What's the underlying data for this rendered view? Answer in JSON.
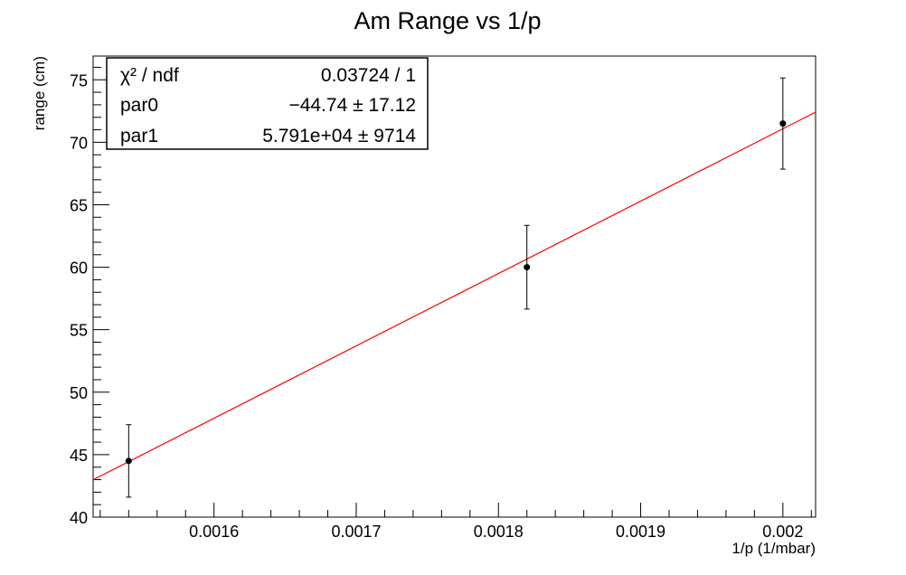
{
  "chart_data": {
    "type": "scatter",
    "title": "Am Range vs 1/p",
    "xlabel": "1/p (1/mbar)",
    "ylabel": "range (cm)",
    "xlim": [
      0.001515,
      0.002023
    ],
    "ylim": [
      40,
      76.9
    ],
    "grid": false,
    "x_ticks": [
      "0.0016",
      "0.0017",
      "0.0018",
      "0.0019",
      "0.002"
    ],
    "y_ticks": [
      "40",
      "45",
      "50",
      "55",
      "60",
      "65",
      "70",
      "75"
    ],
    "series": [
      {
        "type": "scatter",
        "x": [
          0.00154,
          0.00182,
          0.002
        ],
        "y": [
          44.5,
          60.0,
          71.5
        ],
        "yerr": [
          2.9,
          3.35,
          3.65
        ],
        "color": "#000000"
      },
      {
        "type": "line",
        "fit": "linear",
        "intercept": -44.74,
        "slope": 57910,
        "color": "#ff0000"
      }
    ],
    "stats_box": {
      "placement": "top-left",
      "rows": [
        {
          "label": "χ² / ndf",
          "value": "0.03724 / 1"
        },
        {
          "label": "par0",
          "value": "−44.74 ± 17.12"
        },
        {
          "label": "par1",
          "value": "5.791e+04 ±  9714"
        }
      ]
    }
  }
}
